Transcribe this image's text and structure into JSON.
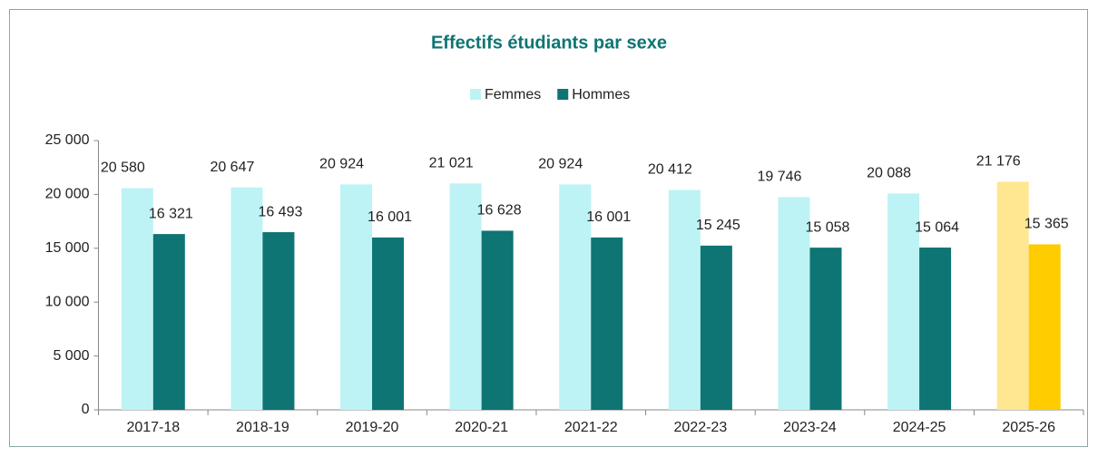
{
  "chart_data": {
    "type": "bar",
    "title": "Effectifs étudiants par sexe",
    "categories": [
      "2017-18",
      "2018-19",
      "2019-20",
      "2020-21",
      "2021-22",
      "2022-23",
      "2023-24",
      "2024-25",
      "2025-26"
    ],
    "series": [
      {
        "name": "Femmes",
        "color": "#bdf3f5",
        "colors": [
          "#bdf3f5",
          "#bdf3f5",
          "#bdf3f5",
          "#bdf3f5",
          "#bdf3f5",
          "#bdf3f5",
          "#bdf3f5",
          "#bdf3f5",
          "#ffe791"
        ],
        "values": [
          20580,
          20647,
          20924,
          21021,
          20924,
          20412,
          19746,
          20088,
          21176
        ],
        "value_labels": [
          "20 580",
          "20 647",
          "20 924",
          "21 021",
          "20 924",
          "20 412",
          "19 746",
          "20 088",
          "21 176"
        ]
      },
      {
        "name": "Hommes",
        "color": "#0e7474",
        "colors": [
          "#0e7474",
          "#0e7474",
          "#0e7474",
          "#0e7474",
          "#0e7474",
          "#0e7474",
          "#0e7474",
          "#0e7474",
          "#ffcc00"
        ],
        "values": [
          16321,
          16493,
          16001,
          16628,
          16001,
          15245,
          15058,
          15064,
          15365
        ],
        "value_labels": [
          "16 321",
          "16 493",
          "16 001",
          "16 628",
          "16 001",
          "15 245",
          "15 058",
          "15 064",
          "15 365"
        ]
      }
    ],
    "ylim": [
      0,
      25000
    ],
    "yticks": [
      0,
      {
        "value": 5000,
        "label": "5 000"
      },
      {
        "value": 10000,
        "label": "10 000"
      },
      {
        "value": 15000,
        "label": "15 000"
      },
      {
        "value": 20000,
        "label": "20 000"
      },
      {
        "value": 25000,
        "label": "25 000"
      }
    ],
    "grid": false,
    "legend": "top"
  }
}
